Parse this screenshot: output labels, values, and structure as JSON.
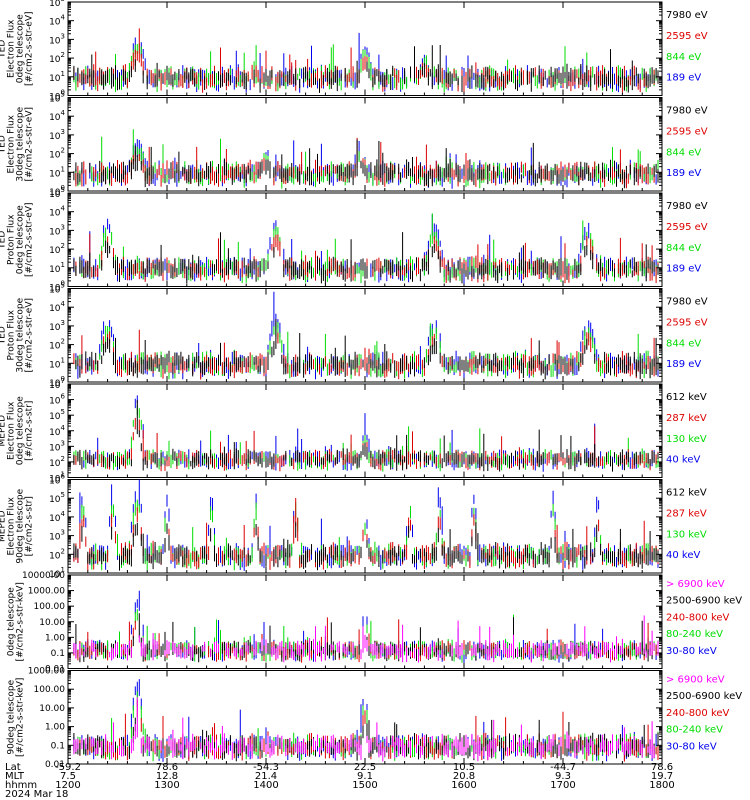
{
  "figure": {
    "date": "2024 Mar 18",
    "x_rows": [
      {
        "label": "Lat",
        "values": [
          "-59.2",
          "78.6",
          "-54.3",
          "22.5",
          "10.5",
          "-44.7",
          "78.6"
        ]
      },
      {
        "label": "MLT",
        "values": [
          "7.5",
          "12.8",
          "21.4",
          "9.1",
          "20.8",
          "9.3",
          "19.7"
        ]
      },
      {
        "label": "hhmm",
        "values": [
          "1200",
          "1300",
          "1400",
          "1500",
          "1600",
          "1700",
          "1800"
        ]
      }
    ]
  },
  "colors": {
    "black": "#000000",
    "red": "#dd0000",
    "green": "#00dd00",
    "blue": "#0000ee",
    "magenta": "#ff00ff"
  },
  "chart_data": [
    {
      "type": "line",
      "instrument": "TED",
      "ylabel": [
        "TED",
        "Electron Flux",
        "0deg telescope",
        "[#/cm2-s-str-eV]"
      ],
      "y_scale": "log",
      "ylim_exp": [
        0,
        5
      ],
      "tick_format": "exp",
      "x_range": [
        1200,
        1800
      ],
      "legend": [
        {
          "name": "7980 eV",
          "color": "black"
        },
        {
          "name": "2595 eV",
          "color": "red"
        },
        {
          "name": "844 eV",
          "color": "green"
        },
        {
          "name": "189 eV",
          "color": "blue"
        }
      ],
      "peaks": [
        [
          1270,
          3,
          10
        ],
        [
          1500,
          2.5,
          8
        ],
        [
          1560,
          2,
          6
        ]
      ]
    },
    {
      "type": "line",
      "instrument": "TED",
      "ylabel": [
        "TED",
        "Electron Flux",
        "30deg telescope",
        "[#/cm2-s-str-eV]"
      ],
      "y_scale": "log",
      "ylim_exp": [
        0,
        5
      ],
      "tick_format": "exp",
      "x_range": [
        1200,
        1800
      ],
      "legend": [
        {
          "name": "7980 eV",
          "color": "black"
        },
        {
          "name": "2595 eV",
          "color": "red"
        },
        {
          "name": "844 eV",
          "color": "green"
        },
        {
          "name": "189 eV",
          "color": "blue"
        }
      ],
      "peaks": [
        [
          1270,
          2.5,
          10
        ],
        [
          1400,
          2,
          8
        ],
        [
          1495,
          2.2,
          8
        ]
      ]
    },
    {
      "type": "line",
      "instrument": "TED",
      "ylabel": [
        "TED",
        "Proton Flux",
        "0deg telescope",
        "[#/cm2-s-str-eV]"
      ],
      "y_scale": "log",
      "ylim_exp": [
        0,
        5
      ],
      "tick_format": "exp",
      "x_range": [
        1200,
        1800
      ],
      "legend": [
        {
          "name": "7980 eV",
          "color": "black"
        },
        {
          "name": "2595 eV",
          "color": "red"
        },
        {
          "name": "844 eV",
          "color": "green"
        },
        {
          "name": "189 eV",
          "color": "blue"
        }
      ],
      "peaks": [
        [
          1240,
          3.4,
          10
        ],
        [
          1410,
          3.4,
          10
        ],
        [
          1570,
          3.2,
          10
        ],
        [
          1725,
          3.2,
          10
        ]
      ]
    },
    {
      "type": "line",
      "instrument": "TED",
      "ylabel": [
        "TED",
        "Proton Flux",
        "30deg telescope",
        "[#/cm2-s-str-eV]"
      ],
      "y_scale": "log",
      "ylim_exp": [
        0,
        5
      ],
      "tick_format": "exp",
      "x_range": [
        1200,
        1800
      ],
      "legend": [
        {
          "name": "7980 eV",
          "color": "black"
        },
        {
          "name": "2595 eV",
          "color": "red"
        },
        {
          "name": "844 eV",
          "color": "green"
        },
        {
          "name": "189 eV",
          "color": "blue"
        }
      ],
      "peaks": [
        [
          1240,
          3.3,
          10
        ],
        [
          1410,
          3.4,
          10
        ],
        [
          1570,
          3.1,
          10
        ],
        [
          1725,
          3.1,
          10
        ]
      ]
    },
    {
      "type": "line",
      "instrument": "MEPED",
      "ylabel": [
        "MEPED",
        "Electron Flux",
        "0deg telescope",
        "[#/cm2-s-str]"
      ],
      "y_scale": "log",
      "ylim_exp": [
        1,
        7
      ],
      "tick_format": "exp",
      "x_range": [
        1200,
        1800
      ],
      "legend": [
        {
          "name": "612 keV",
          "color": "black"
        },
        {
          "name": "287 keV",
          "color": "red"
        },
        {
          "name": "130 keV",
          "color": "green"
        },
        {
          "name": "40 keV",
          "color": "blue"
        }
      ],
      "peaks": [
        [
          1270,
          6.2,
          8
        ],
        [
          1500,
          3.8,
          5
        ]
      ]
    },
    {
      "type": "line",
      "instrument": "MEPED",
      "ylabel": [
        "MEPED",
        "Electron Flux",
        "90deg telescope",
        "[#/cm2-s-str]"
      ],
      "y_scale": "log",
      "ylim_exp": [
        1,
        6
      ],
      "tick_format": "exp",
      "x_range": [
        1200,
        1800
      ],
      "legend": [
        {
          "name": "612 keV",
          "color": "black"
        },
        {
          "name": "287 keV",
          "color": "red"
        },
        {
          "name": "130 keV",
          "color": "green"
        },
        {
          "name": "40 keV",
          "color": "blue"
        }
      ],
      "peaks": [
        [
          1215,
          5,
          5
        ],
        [
          1245,
          5,
          5
        ],
        [
          1270,
          5.4,
          8
        ],
        [
          1300,
          5,
          4
        ],
        [
          1345,
          5,
          4
        ],
        [
          1390,
          5,
          4
        ],
        [
          1430,
          5,
          4
        ],
        [
          1500,
          4,
          5
        ],
        [
          1545,
          5,
          4
        ],
        [
          1575,
          5,
          4
        ],
        [
          1610,
          5,
          4
        ],
        [
          1690,
          5,
          4
        ],
        [
          1735,
          5,
          4
        ]
      ]
    },
    {
      "type": "line",
      "instrument": "MEPED",
      "ylabel": [
        "0deg telescope",
        "[#/cm2-s-str-keV]"
      ],
      "y_scale": "log",
      "ylim_exp": [
        -2,
        4
      ],
      "tick_format": "decimal",
      "x_range": [
        1200,
        1800
      ],
      "legend": [
        {
          "name": "> 6900 keV",
          "color": "magenta"
        },
        {
          "name": "2500-6900 keV",
          "color": "black"
        },
        {
          "name": "240-800 keV",
          "color": "red"
        },
        {
          "name": "80-240 keV",
          "color": "green"
        },
        {
          "name": "30-80 keV",
          "color": "blue"
        }
      ],
      "peaks": [
        [
          1270,
          2.2,
          8
        ],
        [
          1500,
          1.5,
          5
        ]
      ]
    },
    {
      "type": "line",
      "instrument": "MEPED",
      "ylabel": [
        "90deg telescope",
        "[#/cm2-s-str-keV]"
      ],
      "y_scale": "log",
      "ylim_exp": [
        -2,
        3
      ],
      "tick_format": "decimal",
      "x_range": [
        1200,
        1800
      ],
      "legend": [
        {
          "name": "> 6900 keV",
          "color": "magenta"
        },
        {
          "name": "2500-6900 keV",
          "color": "black"
        },
        {
          "name": "240-800 keV",
          "color": "red"
        },
        {
          "name": "80-240 keV",
          "color": "green"
        },
        {
          "name": "30-80 keV",
          "color": "blue"
        }
      ],
      "peaks": [
        [
          1270,
          2.3,
          8
        ],
        [
          1500,
          1.6,
          5
        ]
      ]
    }
  ]
}
